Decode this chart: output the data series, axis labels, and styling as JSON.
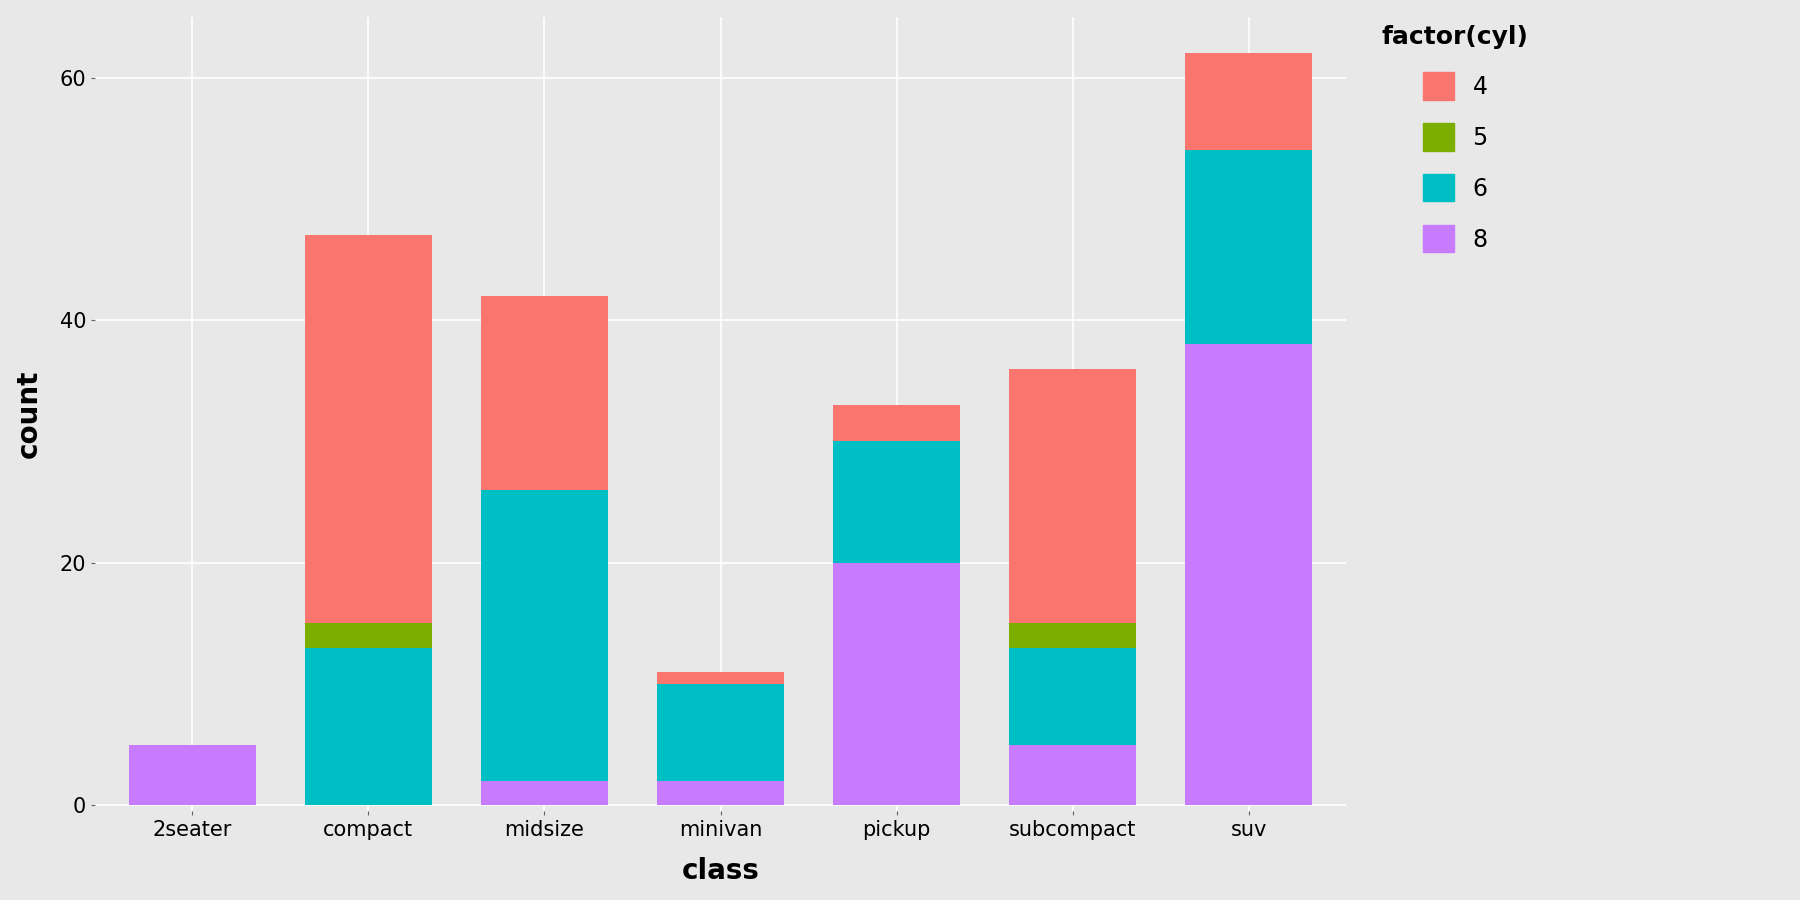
{
  "categories": [
    "2seater",
    "compact",
    "midsize",
    "minivan",
    "pickup",
    "subcompact",
    "suv"
  ],
  "stacks": {
    "4": [
      0,
      32,
      16,
      1,
      3,
      21,
      8
    ],
    "5": [
      0,
      2,
      0,
      0,
      0,
      2,
      0
    ],
    "6": [
      0,
      13,
      24,
      8,
      10,
      8,
      16
    ],
    "8": [
      5,
      0,
      2,
      2,
      20,
      5,
      38
    ]
  },
  "colors": {
    "4": "#F8766D",
    "5": "#7CAE00",
    "6": "#00BFC4",
    "8": "#C77CFF"
  },
  "stack_order": [
    "8",
    "6",
    "5",
    "4"
  ],
  "legend_order": [
    "4",
    "5",
    "6",
    "8"
  ],
  "xlabel": "class",
  "ylabel": "count",
  "legend_title": "factor(cyl)",
  "ylim": [
    -0.5,
    65
  ],
  "yticks": [
    0,
    20,
    40,
    60
  ],
  "background_color": "#E8E8E8",
  "panel_background": "#E8E8E8",
  "grid_color": "#FFFFFF",
  "bar_width": 0.72,
  "axis_label_fontsize": 20,
  "tick_fontsize": 15,
  "legend_fontsize": 17,
  "legend_title_fontsize": 18,
  "figure_width": 18.0,
  "figure_height": 9.0,
  "figure_dpi": 100
}
